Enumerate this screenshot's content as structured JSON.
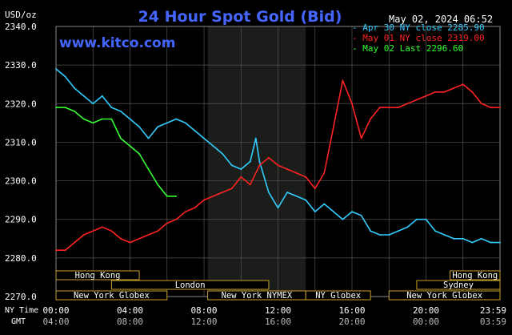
{
  "chart_data": {
    "type": "line",
    "title": "24 Hour Spot Gold (Bid)",
    "watermark": "www.kitco.com",
    "timestamp": "May 02, 2024 06:52",
    "y_unit_label": "USD/oz",
    "ylim": [
      2270,
      2340
    ],
    "y_ticks": [
      "2340.0",
      "2330.0",
      "2320.0",
      "2310.0",
      "2300.0",
      "2290.0",
      "2280.0",
      "2270.0"
    ],
    "x_row_labels": [
      "NY Time",
      "GMT"
    ],
    "x_ticks_ny": [
      "00:00",
      "04:00",
      "08:00",
      "12:00",
      "16:00",
      "20:00",
      "23:59"
    ],
    "x_ticks_gmt": [
      "04:00",
      "08:00",
      "12:00",
      "16:00",
      "20:00",
      "00:00",
      "03:59"
    ],
    "x_hours": [
      0,
      4,
      8,
      12,
      16,
      20,
      24
    ],
    "legend_position": "top-right",
    "series": [
      {
        "name": "Apr 30 NY close 2285.90",
        "color": "#33ccff",
        "x": [
          0,
          0.5,
          1,
          1.5,
          2,
          2.5,
          3,
          3.5,
          4,
          4.5,
          5,
          5.5,
          6,
          6.5,
          7,
          7.5,
          8,
          8.5,
          9,
          9.5,
          10,
          10.5,
          10.8,
          11,
          11.5,
          12,
          12.5,
          13,
          13.5,
          14,
          14.5,
          15,
          15.5,
          16,
          16.5,
          17,
          17.5,
          18,
          18.5,
          19,
          19.5,
          20,
          20.5,
          21,
          21.5,
          22,
          22.5,
          23,
          23.5,
          24
        ],
        "values": [
          2329,
          2327,
          2324,
          2322,
          2320,
          2322,
          2319,
          2318,
          2316,
          2314,
          2311,
          2314,
          2315,
          2316,
          2315,
          2313,
          2311,
          2309,
          2307,
          2304,
          2303,
          2305,
          2311,
          2305,
          2297,
          2293,
          2297,
          2296,
          2295,
          2292,
          2294,
          2292,
          2290,
          2292,
          2291,
          2287,
          2286,
          2286,
          2287,
          2288,
          2290,
          2290,
          2287,
          2286,
          2285,
          2285,
          2284,
          2285,
          2284,
          2284
        ]
      },
      {
        "name": "May 01 NY close 2319.00",
        "color": "#ff2222",
        "x": [
          0,
          0.5,
          1,
          1.5,
          2,
          2.5,
          3,
          3.5,
          4,
          4.5,
          5,
          5.5,
          6,
          6.5,
          7,
          7.5,
          8,
          8.5,
          9,
          9.5,
          10,
          10.5,
          11,
          11.5,
          12,
          12.5,
          13,
          13.5,
          14,
          14.5,
          15,
          15.5,
          16,
          16.5,
          17,
          17.5,
          18,
          18.5,
          19,
          19.5,
          20,
          20.5,
          21,
          21.5,
          22,
          22.5,
          23,
          23.5,
          24
        ],
        "values": [
          2282,
          2282,
          2284,
          2286,
          2287,
          2288,
          2287,
          2285,
          2284,
          2285,
          2286,
          2287,
          2289,
          2290,
          2292,
          2293,
          2295,
          2296,
          2297,
          2298,
          2301,
          2299,
          2304,
          2306,
          2304,
          2303,
          2302,
          2301,
          2298,
          2302,
          2314,
          2326,
          2320,
          2311,
          2316,
          2319,
          2319,
          2319,
          2320,
          2321,
          2322,
          2323,
          2323,
          2324,
          2325,
          2323,
          2320,
          2319,
          2319
        ]
      },
      {
        "name": "May 02 Last 2296.60",
        "color": "#33ff33",
        "x": [
          0,
          0.5,
          1,
          1.5,
          2,
          2.5,
          3,
          3.5,
          4,
          4.5,
          5,
          5.5,
          6,
          6.5
        ],
        "values": [
          2319,
          2319,
          2318,
          2316,
          2315,
          2316,
          2316,
          2311,
          2309,
          2307,
          2303,
          2299,
          2296,
          2296
        ]
      }
    ],
    "market_sessions": [
      {
        "label": "Hong Kong",
        "row": 0,
        "start": 0,
        "end": 4.5
      },
      {
        "label": "Hong Kong",
        "row": 0,
        "start": 21.3,
        "end": 24
      },
      {
        "label": "London",
        "row": 1,
        "start": 3,
        "end": 11.5
      },
      {
        "label": "Sydney",
        "row": 1,
        "start": 19.5,
        "end": 24
      },
      {
        "label": "New York Globex",
        "row": 2,
        "start": 0,
        "end": 6
      },
      {
        "label": "New York NYMEX",
        "row": 2,
        "start": 8.2,
        "end": 13.5
      },
      {
        "label": "NY Globex",
        "row": 2,
        "start": 13.5,
        "end": 17
      },
      {
        "label": "New York Globex",
        "row": 2,
        "start": 18,
        "end": 24
      }
    ],
    "shaded_hours": [
      8.2,
      13.5
    ],
    "grid": true
  }
}
